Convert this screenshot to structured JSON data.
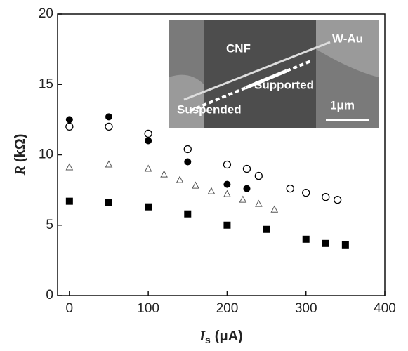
{
  "chart_data": {
    "type": "scatter",
    "x_label_symbol": "I",
    "x_label_subscript": "s",
    "x_label_unit": "(μA)",
    "y_label_symbol": "R",
    "y_label_unit": "(kΩ)",
    "xlim": [
      -15,
      400
    ],
    "xticks": [
      0,
      100,
      200,
      300,
      400
    ],
    "ylim": [
      0,
      20
    ],
    "yticks": [
      0,
      5,
      10,
      15,
      20
    ],
    "annotations": [
      "CNF",
      "W-Au",
      "Supported",
      "Suspended",
      "1μm"
    ],
    "series": [
      {
        "marker": "filled-circle",
        "color": "#000000",
        "x": [
          0,
          50,
          100,
          150,
          200,
          225
        ],
        "values": [
          12.5,
          12.7,
          11.0,
          9.5,
          7.9,
          7.6
        ]
      },
      {
        "marker": "open-circle",
        "color": "#000000",
        "x": [
          0,
          50,
          100,
          150,
          200,
          225,
          240,
          280,
          300,
          325,
          340
        ],
        "values": [
          12.0,
          12.0,
          11.5,
          10.4,
          9.3,
          9.0,
          8.5,
          7.6,
          7.3,
          7.0,
          6.8
        ]
      },
      {
        "marker": "open-triangle",
        "color": "#555555",
        "x": [
          0,
          50,
          100,
          120,
          140,
          160,
          180,
          200,
          220,
          240,
          260
        ],
        "values": [
          9.1,
          9.3,
          9.0,
          8.6,
          8.2,
          7.8,
          7.4,
          7.2,
          6.8,
          6.5,
          6.1
        ]
      },
      {
        "marker": "filled-square",
        "color": "#000000",
        "x": [
          0,
          50,
          100,
          150,
          200,
          250,
          300,
          325,
          350
        ],
        "values": [
          6.7,
          6.6,
          6.3,
          5.8,
          5.0,
          4.7,
          4.0,
          3.7,
          3.6
        ]
      }
    ]
  }
}
